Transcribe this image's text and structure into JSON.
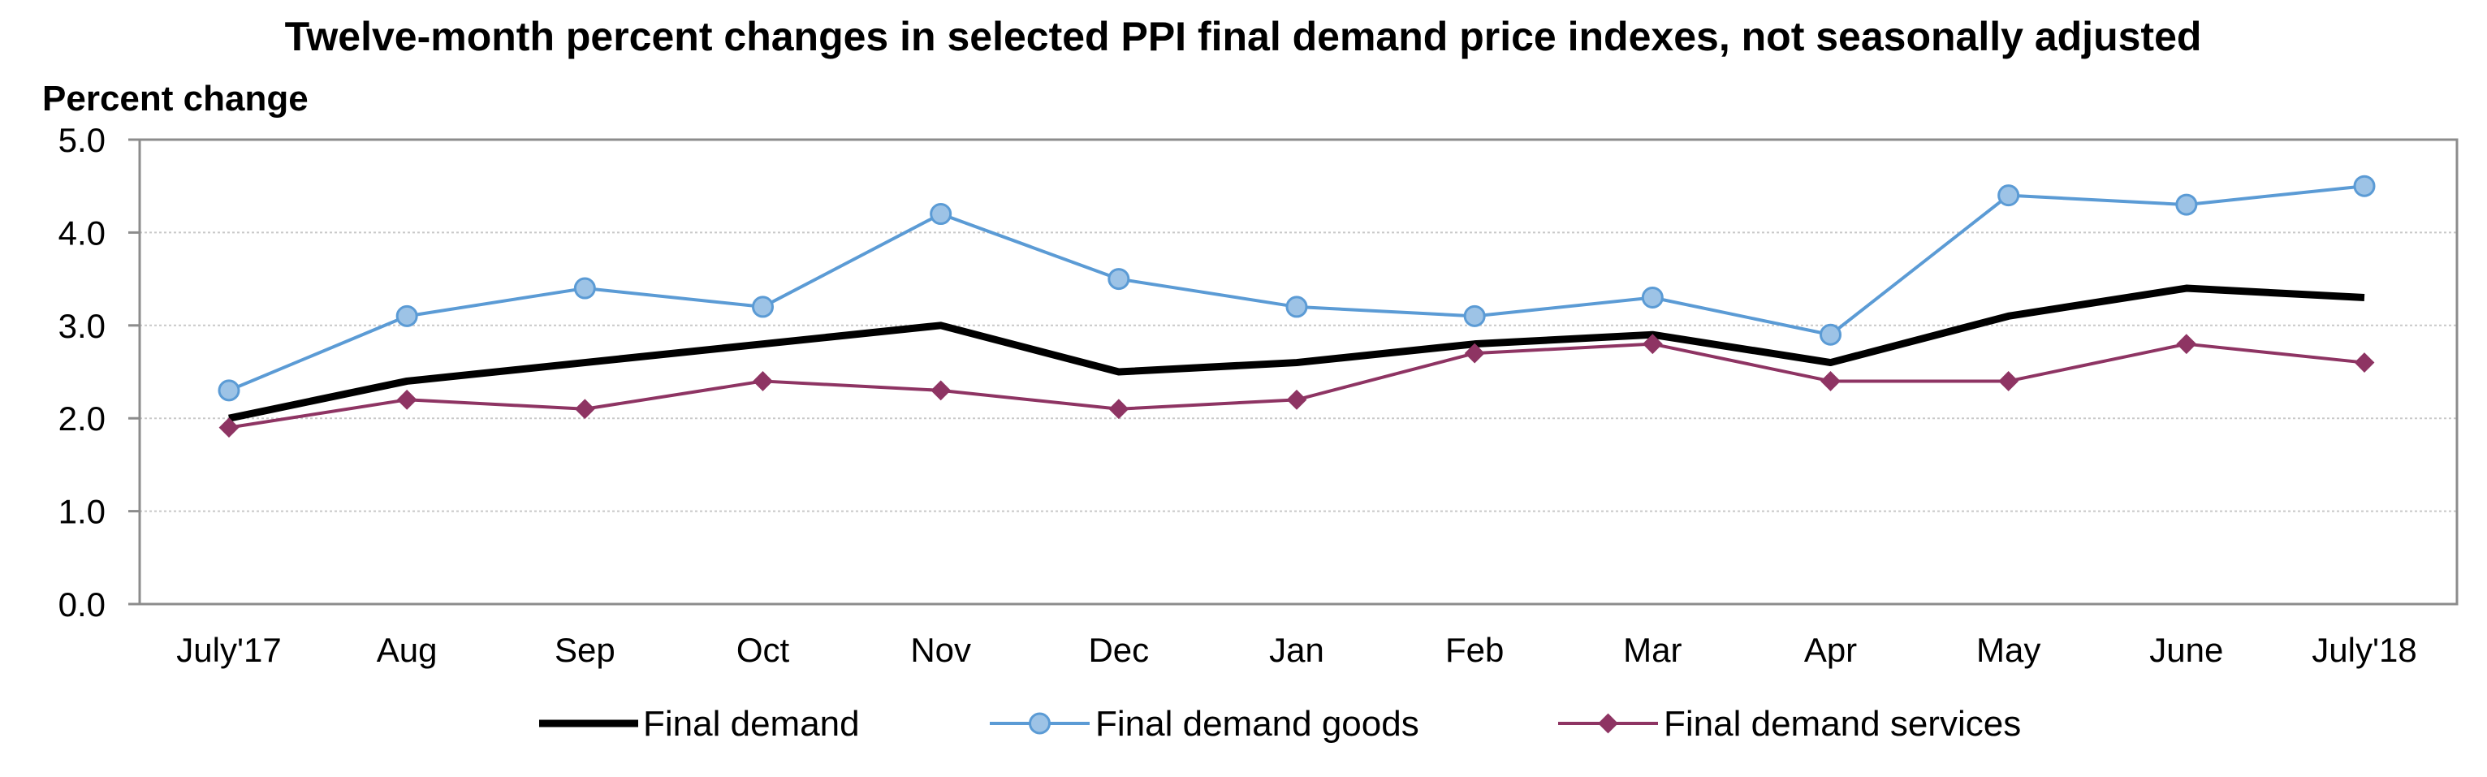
{
  "chart_data": {
    "type": "line",
    "title": "Twelve-month percent changes in selected PPI final demand price indexes, not seasonally adjusted",
    "ylabel": "Percent change",
    "xlabel": "",
    "ylim": [
      0,
      5
    ],
    "y_ticks": [
      "0.0",
      "1.0",
      "2.0",
      "3.0",
      "4.0",
      "5.0"
    ],
    "categories": [
      "July'17",
      "Aug",
      "Sep",
      "Oct",
      "Nov",
      "Dec",
      "Jan",
      "Feb",
      "Mar",
      "Apr",
      "May",
      "June",
      "July'18"
    ],
    "grid": true,
    "legend_position": "bottom",
    "series": [
      {
        "name": "Final demand",
        "color": "#000000",
        "marker": "none",
        "values": [
          2.0,
          2.4,
          2.6,
          2.8,
          3.0,
          2.5,
          2.6,
          2.8,
          2.9,
          2.6,
          3.1,
          3.4,
          3.3
        ]
      },
      {
        "name": "Final demand goods",
        "color": "#5b9bd5",
        "marker_fill": "#9dc3e6",
        "marker": "circle",
        "values": [
          2.3,
          3.1,
          3.4,
          3.2,
          4.2,
          3.5,
          3.2,
          3.1,
          3.3,
          2.9,
          4.4,
          4.3,
          4.5
        ]
      },
      {
        "name": "Final demand services",
        "color": "#8e3463",
        "marker": "diamond",
        "values": [
          1.9,
          2.2,
          2.1,
          2.4,
          2.3,
          2.1,
          2.2,
          2.7,
          2.8,
          2.4,
          2.4,
          2.8,
          2.6
        ]
      }
    ]
  }
}
